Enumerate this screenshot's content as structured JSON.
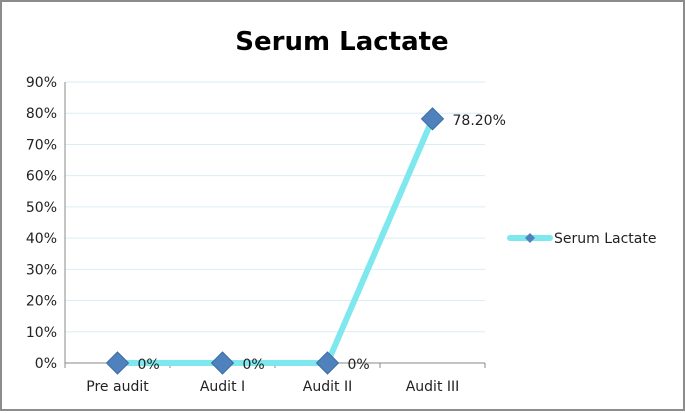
{
  "chart_data": {
    "type": "line",
    "title": "Serum Lactate",
    "xlabel": "",
    "ylabel": "",
    "categories": [
      "Pre audit",
      "Audit I",
      "Audit II",
      "Audit III"
    ],
    "series": [
      {
        "name": "Serum Lactate",
        "values": [
          0,
          0,
          0,
          78.2
        ],
        "data_labels": [
          "0%",
          "0%",
          "0%",
          "78.20%"
        ]
      }
    ],
    "ylim": [
      0,
      90
    ],
    "y_ticks": [
      0,
      10,
      20,
      30,
      40,
      50,
      60,
      70,
      80,
      90
    ],
    "y_tick_labels": [
      "0%",
      "10%",
      "20%",
      "30%",
      "40%",
      "50%",
      "60%",
      "70%",
      "80%",
      "90%"
    ],
    "grid": true,
    "legend_position": "right",
    "colors": {
      "line": "#7FE8EE",
      "marker": "#4F81BD",
      "grid": "#D9EEF2",
      "axis": "#888888"
    }
  }
}
